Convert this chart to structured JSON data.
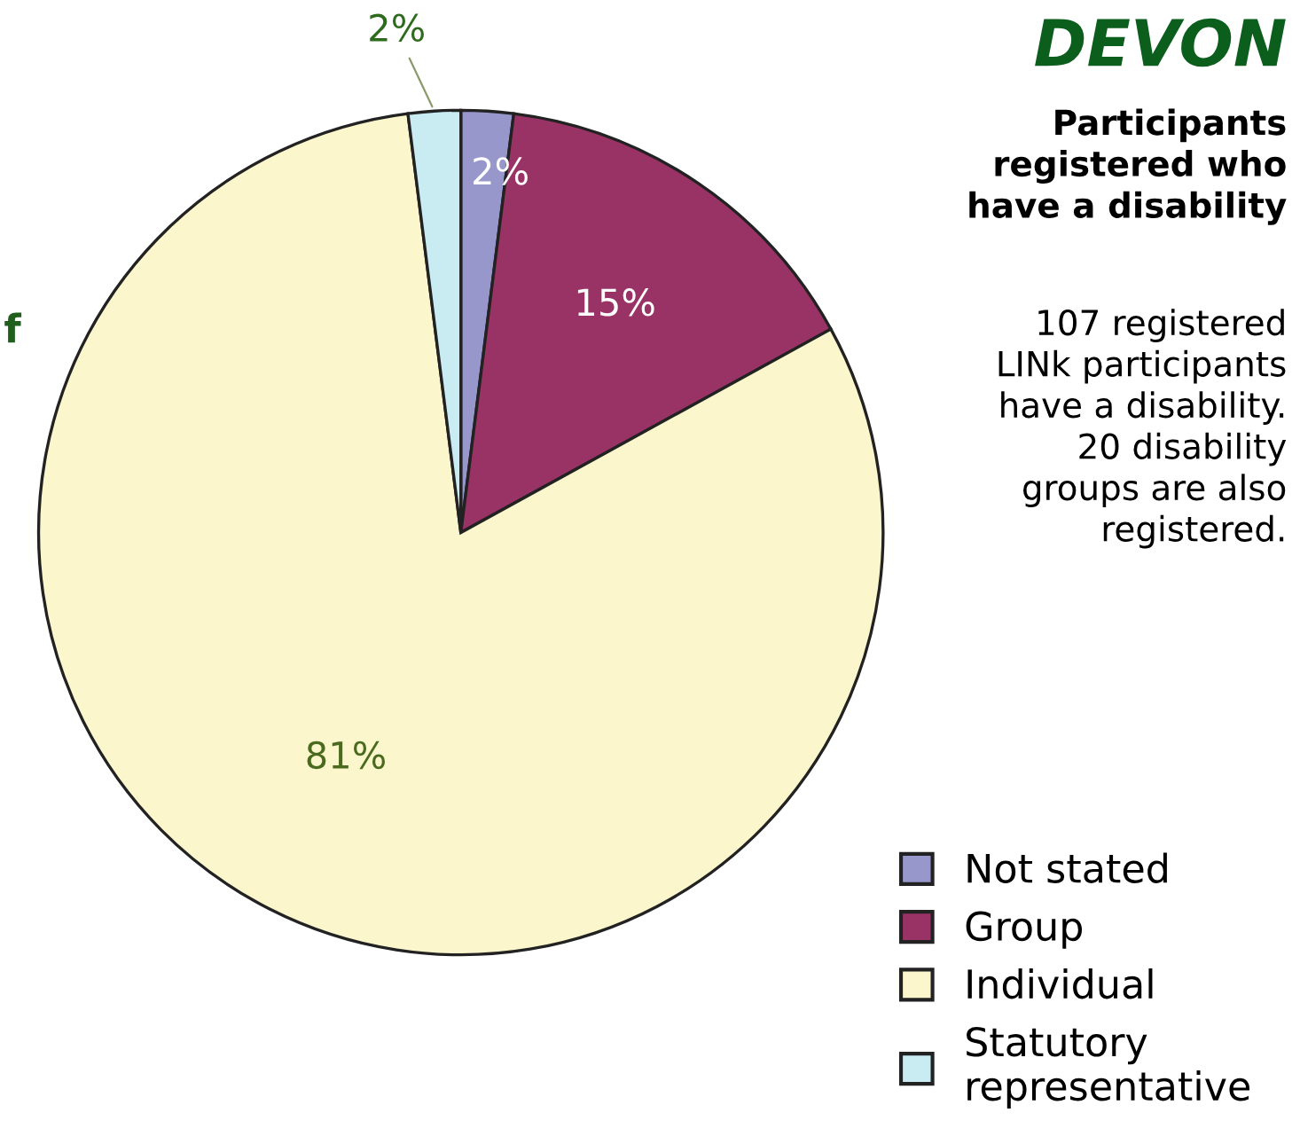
{
  "chart_data": {
    "type": "pie",
    "title": "DEVON",
    "subtitle": "Participants\nregistered who\nhave a disability",
    "annotations": [
      "107 registered\nLINk participants\nhave a disability.\n20 disability\ngroups are also\nregistered.",
      "f"
    ],
    "categories": [
      "Not stated",
      "Group",
      "Individual",
      "Statutory\nrepresentative"
    ],
    "values": [
      2,
      15,
      81,
      2
    ],
    "colors": [
      "#9797cc",
      "#993366",
      "#fbf6cc",
      "#c9ecf2"
    ],
    "value_labels": [
      "2%",
      "15%",
      "81%",
      "2%"
    ],
    "legend": "bottom right"
  }
}
